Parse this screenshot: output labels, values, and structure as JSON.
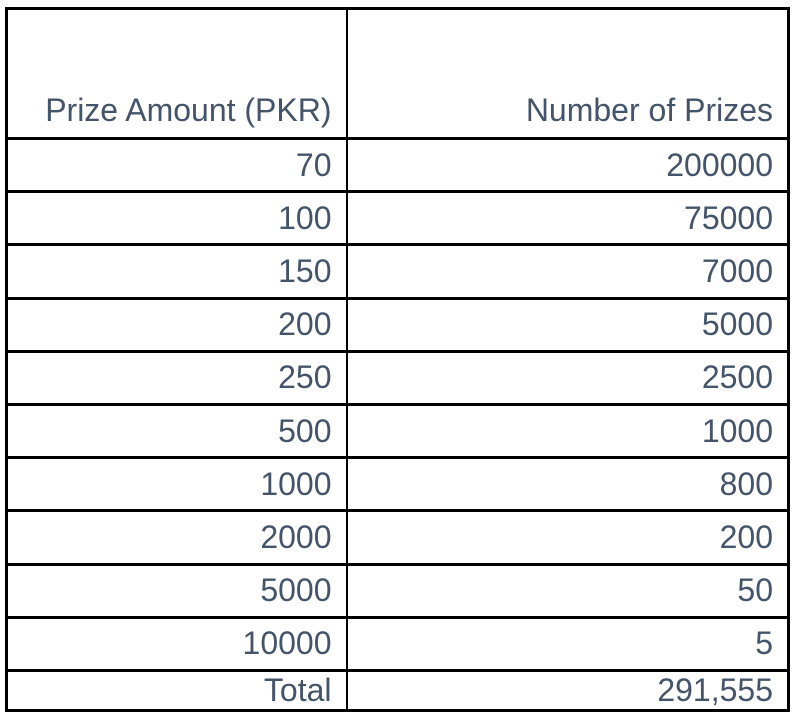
{
  "table": {
    "columns": [
      {
        "label": "Prize Amount (PKR)"
      },
      {
        "label": "Number of Prizes"
      }
    ],
    "rows": [
      [
        "70",
        "200000"
      ],
      [
        "100",
        "75000"
      ],
      [
        "150",
        "7000"
      ],
      [
        "200",
        "5000"
      ],
      [
        "250",
        "2500"
      ],
      [
        "500",
        "1000"
      ],
      [
        "1000",
        "800"
      ],
      [
        "2000",
        "200"
      ],
      [
        "5000",
        "50"
      ],
      [
        "10000",
        "5"
      ]
    ],
    "total": {
      "label": "Total",
      "value": "291,555"
    }
  },
  "colors": {
    "text": "#44546A",
    "border": "#000000",
    "background": "#FFFFFF"
  }
}
